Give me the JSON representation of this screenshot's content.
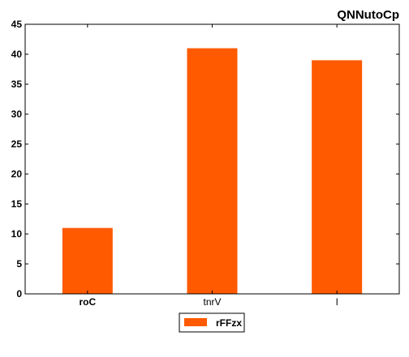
{
  "chart_data": {
    "type": "bar",
    "title": "QNNutoCp",
    "categories": [
      "roC",
      "tnrV",
      "l"
    ],
    "series": [
      {
        "name": "rFFzx",
        "values": [
          11,
          41,
          39
        ],
        "color": "#ff5a00"
      }
    ],
    "xlabel": "",
    "ylabel": "",
    "ylim": [
      0,
      45
    ],
    "yticks": [
      0,
      5,
      10,
      15,
      20,
      25,
      30,
      35,
      40,
      45
    ],
    "grid": false,
    "legend_position": "bottom-center"
  }
}
